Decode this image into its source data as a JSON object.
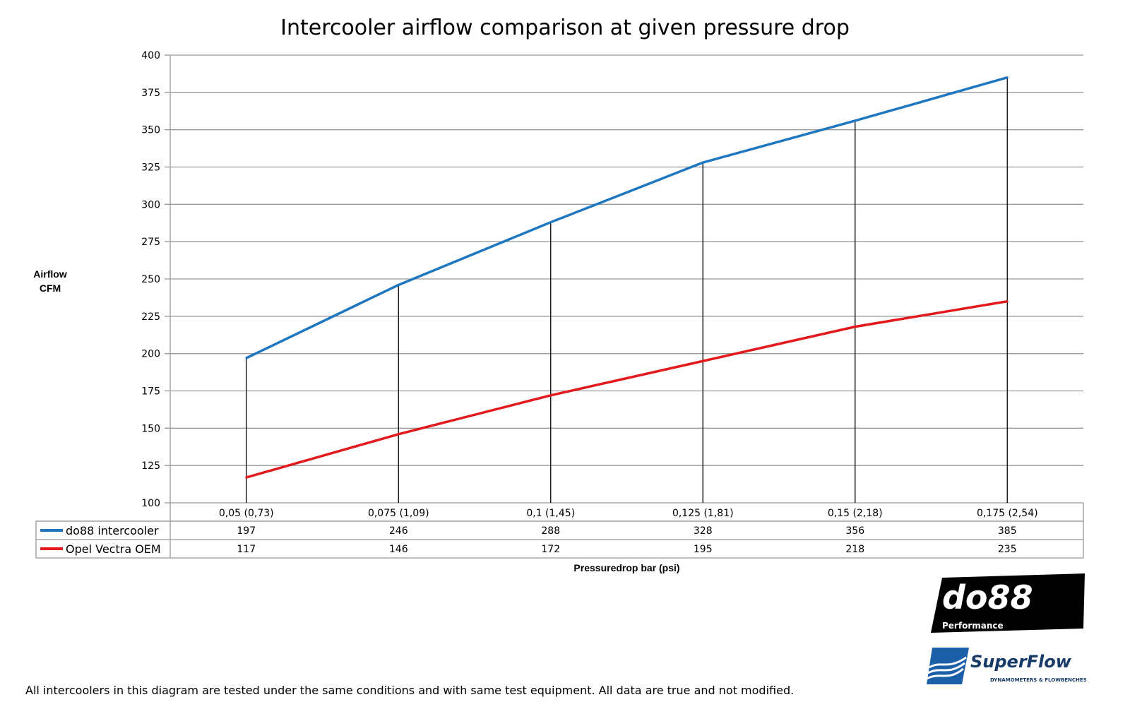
{
  "chart_data": {
    "type": "line",
    "title": "Intercooler airflow comparison at given pressure drop",
    "ylabel": [
      "Airflow",
      "CFM"
    ],
    "xlabel": "Pressuredrop bar (psi)",
    "categories": [
      "0,05 (0,73)",
      "0,075 (1,09)",
      "0,1 (1,45)",
      "0,125 (1,81)",
      "0,15 (2,18)",
      "0,175 (2,54)"
    ],
    "ylim": [
      100,
      400
    ],
    "yticks": [
      "100",
      "125",
      "150",
      "175",
      "200",
      "225",
      "250",
      "275",
      "300",
      "325",
      "350",
      "375",
      "400"
    ],
    "grid": true,
    "legend": "data-table",
    "series": [
      {
        "name": "do88 intercooler",
        "color": "#1f77c0",
        "values": [
          197,
          246,
          288,
          328,
          356,
          385
        ]
      },
      {
        "name": "Opel Vectra OEM",
        "color": "#e31a1c",
        "values": [
          117,
          146,
          172,
          195,
          218,
          235
        ]
      }
    ]
  },
  "footer": "All intercoolers in this diagram are tested under the same conditions and with same test equipment. All data are true and not modified.",
  "logos": {
    "do88": {
      "main": "do88",
      "sub": "Performance"
    },
    "superflow": {
      "main": "SuperFlow",
      "sub": "DYNAMOMETERS & FLOWBENCHES"
    }
  }
}
